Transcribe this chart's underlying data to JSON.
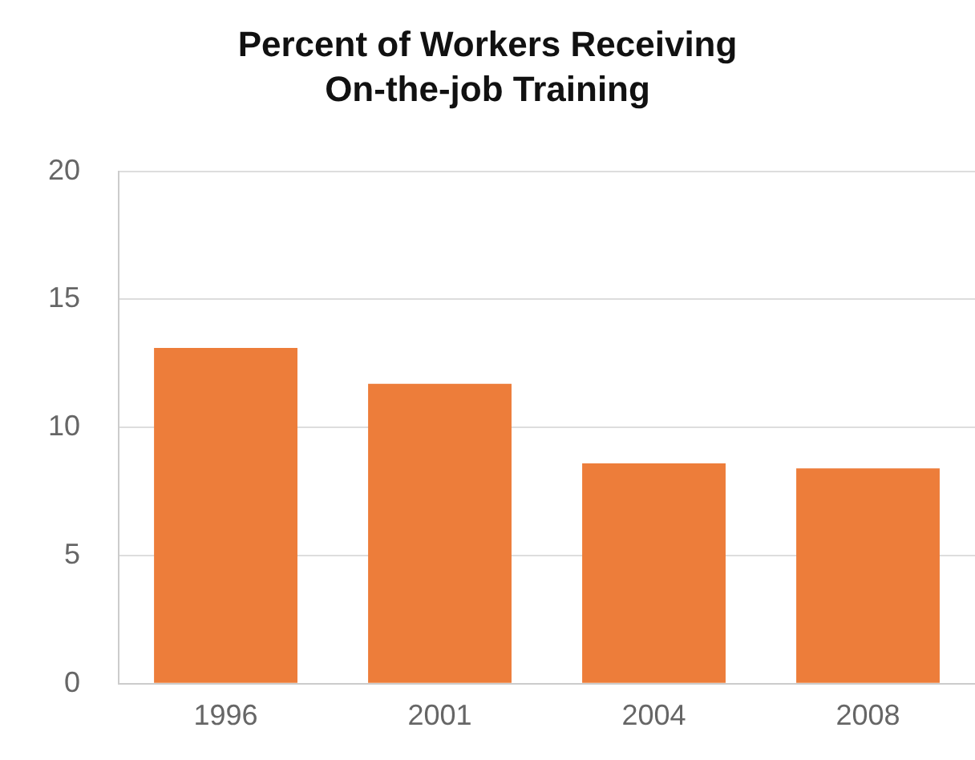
{
  "chart_data": {
    "type": "bar",
    "title": "Percent of Workers Receiving\nOn-the-job Training",
    "categories": [
      "1996",
      "2001",
      "2004",
      "2008"
    ],
    "values": [
      13.1,
      11.7,
      8.6,
      8.4
    ],
    "color": "#ed7d3a",
    "ylim": [
      0,
      20
    ],
    "yticks": [
      0,
      5,
      10,
      15,
      20
    ],
    "grid": "y"
  }
}
